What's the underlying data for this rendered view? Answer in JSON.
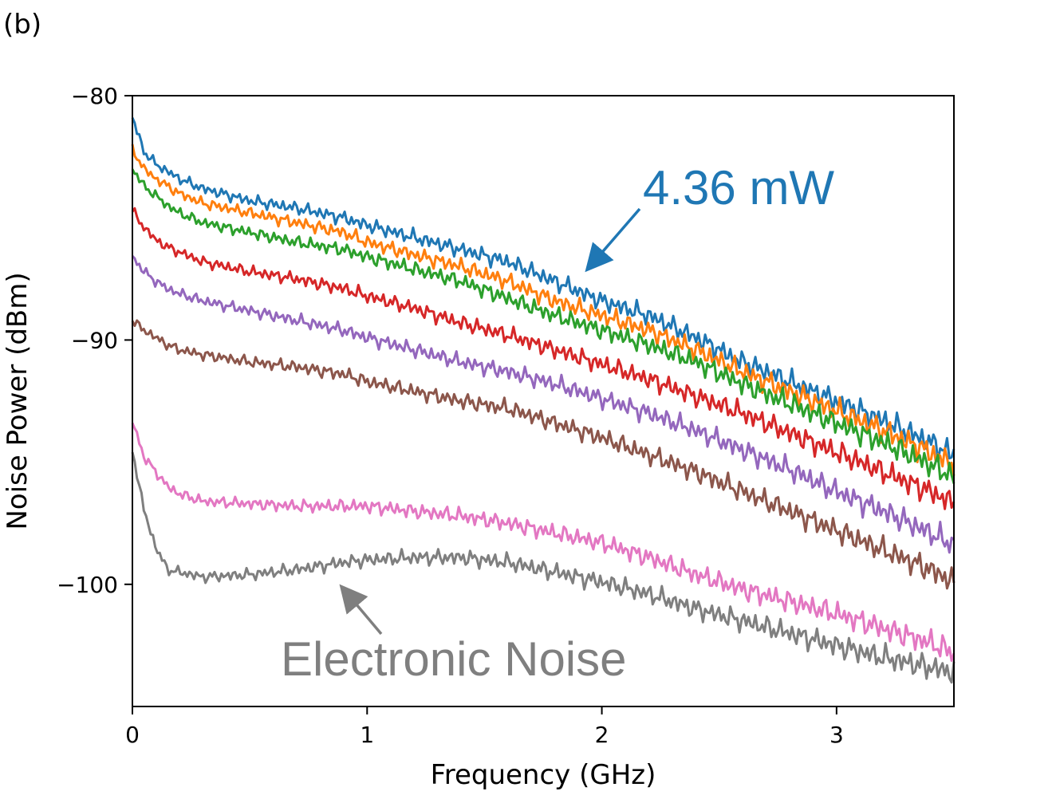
{
  "panel_label": "(b)",
  "chart_data": {
    "type": "line",
    "title": "",
    "xlabel": "Frequency (GHz)",
    "ylabel": "Noise Power (dBm)",
    "xlim": [
      0,
      3.5
    ],
    "ylim": [
      -105,
      -80
    ],
    "xticks": [
      0,
      1,
      2,
      3
    ],
    "xtick_labels": [
      "0",
      "1",
      "2",
      "3"
    ],
    "yticks": [
      -80,
      -90,
      -100
    ],
    "ytick_labels": [
      "−80",
      "−90",
      "−100"
    ],
    "grid": false,
    "x": [
      0.0,
      0.05,
      0.1,
      0.15,
      0.2,
      0.3,
      0.5,
      0.7,
      0.9,
      1.0,
      1.2,
      1.4,
      1.6,
      1.8,
      2.0,
      2.2,
      2.4,
      2.6,
      2.8,
      3.0,
      3.2,
      3.4,
      3.5
    ],
    "series": [
      {
        "name": "4.36 mW",
        "color": "#1f77b4",
        "values": [
          -80.9,
          -82.3,
          -82.8,
          -83.1,
          -83.4,
          -83.8,
          -84.3,
          -84.6,
          -85.0,
          -85.3,
          -85.8,
          -86.3,
          -86.8,
          -87.6,
          -88.4,
          -89.0,
          -89.9,
          -90.9,
          -91.7,
          -92.5,
          -93.3,
          -94.2,
          -94.7
        ]
      },
      {
        "name": "",
        "color": "#ff7f0e",
        "values": [
          -82.2,
          -83.0,
          -83.4,
          -83.7,
          -84.0,
          -84.4,
          -84.8,
          -85.2,
          -85.6,
          -86.0,
          -86.5,
          -87.0,
          -87.6,
          -88.4,
          -89.0,
          -89.6,
          -90.4,
          -91.3,
          -92.1,
          -92.9,
          -93.7,
          -94.6,
          -95.1
        ]
      },
      {
        "name": "",
        "color": "#2ca02c",
        "values": [
          -83.0,
          -83.7,
          -84.1,
          -84.5,
          -84.8,
          -85.2,
          -85.6,
          -86.0,
          -86.3,
          -86.6,
          -87.1,
          -87.6,
          -88.3,
          -89.0,
          -89.6,
          -90.2,
          -90.9,
          -91.8,
          -92.6,
          -93.4,
          -94.2,
          -95.1,
          -95.6
        ]
      },
      {
        "name": "",
        "color": "#d62728",
        "values": [
          -84.7,
          -85.4,
          -85.9,
          -86.2,
          -86.4,
          -86.8,
          -87.2,
          -87.5,
          -87.9,
          -88.2,
          -88.7,
          -89.3,
          -89.8,
          -90.4,
          -91.0,
          -91.6,
          -92.3,
          -93.0,
          -93.8,
          -94.6,
          -95.4,
          -96.2,
          -96.7
        ]
      },
      {
        "name": "",
        "color": "#9467bd",
        "values": [
          -86.6,
          -87.2,
          -87.6,
          -87.9,
          -88.1,
          -88.4,
          -88.8,
          -89.2,
          -89.6,
          -89.9,
          -90.4,
          -90.9,
          -91.3,
          -91.8,
          -92.4,
          -93.0,
          -93.7,
          -94.5,
          -95.3,
          -96.2,
          -97.0,
          -97.9,
          -98.4
        ]
      },
      {
        "name": "",
        "color": "#8c564b",
        "values": [
          -89.2,
          -89.6,
          -89.9,
          -90.2,
          -90.4,
          -90.6,
          -90.9,
          -91.1,
          -91.4,
          -91.7,
          -92.1,
          -92.5,
          -92.8,
          -93.4,
          -94.0,
          -94.7,
          -95.4,
          -96.2,
          -97.0,
          -97.8,
          -98.6,
          -99.4,
          -99.9
        ]
      },
      {
        "name": "",
        "color": "#e377c2",
        "values": [
          -93.3,
          -94.8,
          -95.4,
          -96.0,
          -96.3,
          -96.6,
          -96.7,
          -96.8,
          -96.8,
          -96.8,
          -97.0,
          -97.2,
          -97.5,
          -97.9,
          -98.3,
          -98.9,
          -99.6,
          -100.2,
          -100.7,
          -101.2,
          -101.8,
          -102.4,
          -102.8
        ]
      },
      {
        "name": "Electronic Noise",
        "color": "#7f7f7f",
        "values": [
          -94.5,
          -97.0,
          -98.5,
          -99.4,
          -99.5,
          -99.7,
          -99.6,
          -99.4,
          -99.1,
          -99.0,
          -98.9,
          -98.9,
          -99.1,
          -99.5,
          -99.9,
          -100.4,
          -101.0,
          -101.5,
          -102.0,
          -102.5,
          -103.0,
          -103.4,
          -103.6
        ]
      }
    ],
    "annotations": [
      {
        "text": "4.36 mW",
        "color": "#1f77b4",
        "arrow_target": [
          1.93,
          -87.0
        ]
      },
      {
        "text": "Electronic Noise",
        "color": "#7f7f7f",
        "arrow_target": [
          0.88,
          -100.2
        ]
      }
    ]
  }
}
